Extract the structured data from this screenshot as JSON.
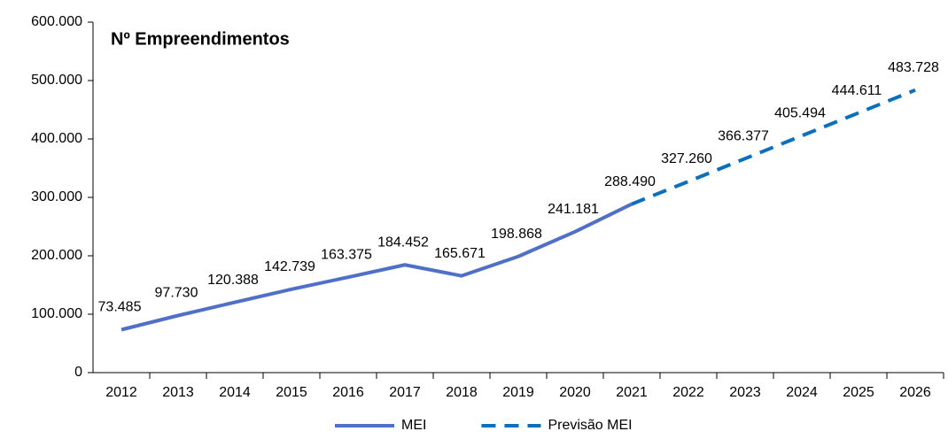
{
  "chart_data": {
    "type": "line",
    "title": "Nº Empreendimentos",
    "categories": [
      "2012",
      "2013",
      "2014",
      "2015",
      "2016",
      "2017",
      "2018",
      "2019",
      "2020",
      "2021",
      "2022",
      "2023",
      "2024",
      "2025",
      "2026"
    ],
    "series": [
      {
        "name": "MEI",
        "color": "#4f6fc8",
        "dashed": false,
        "values": [
          73485,
          97730,
          120388,
          142739,
          163375,
          184452,
          165671,
          198868,
          241181,
          288490,
          null,
          null,
          null,
          null,
          null
        ],
        "value_labels": [
          "73.485",
          "97.730",
          "120.388",
          "142.739",
          "163.375",
          "184.452",
          "165.671",
          "198.868",
          "241.181",
          "288.490",
          null,
          null,
          null,
          null,
          null
        ]
      },
      {
        "name": "Previsão MEI",
        "color": "#0a6fbd",
        "dashed": true,
        "values": [
          null,
          null,
          null,
          null,
          null,
          null,
          null,
          null,
          null,
          288490,
          327260,
          366377,
          405494,
          444611,
          483728
        ],
        "value_labels": [
          null,
          null,
          null,
          null,
          null,
          null,
          null,
          null,
          null,
          null,
          "327.260",
          "366.377",
          "405.494",
          "444.611",
          "483.728"
        ]
      }
    ],
    "ylim": [
      0,
      600000
    ],
    "yticks": [
      0,
      {
        "value": 100000,
        "label": "100.000"
      },
      {
        "value": 200000,
        "label": "200.000"
      },
      {
        "value": 300000,
        "label": "300.000"
      },
      {
        "value": 400000,
        "label": "400.000"
      },
      {
        "value": 500000,
        "label": "500.000"
      },
      {
        "value": 600000,
        "label": "600.000"
      }
    ],
    "legend": "bottom"
  }
}
